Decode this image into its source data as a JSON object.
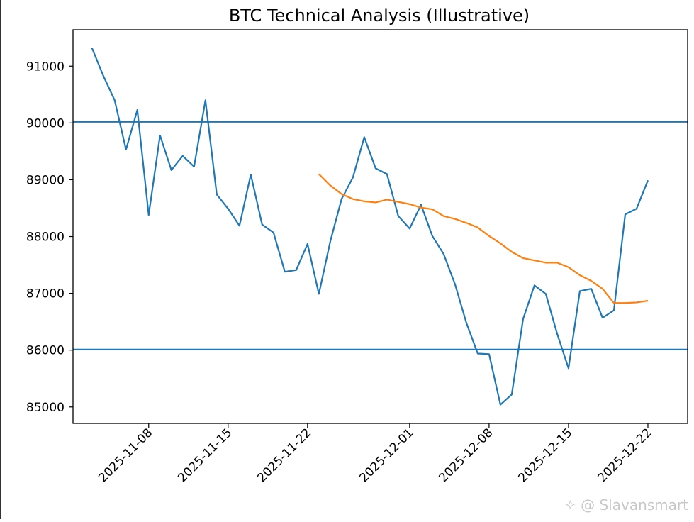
{
  "chart_data": {
    "type": "line",
    "title": "BTC Technical Analysis (Illustrative)",
    "xlabel": "",
    "ylabel": "",
    "x": [
      "2025-11-03",
      "2025-11-04",
      "2025-11-05",
      "2025-11-06",
      "2025-11-07",
      "2025-11-08",
      "2025-11-09",
      "2025-11-10",
      "2025-11-11",
      "2025-11-12",
      "2025-11-13",
      "2025-11-14",
      "2025-11-15",
      "2025-11-16",
      "2025-11-17",
      "2025-11-18",
      "2025-11-19",
      "2025-11-20",
      "2025-11-21",
      "2025-11-22",
      "2025-11-23",
      "2025-11-24",
      "2025-11-25",
      "2025-11-26",
      "2025-11-27",
      "2025-11-28",
      "2025-11-29",
      "2025-11-30",
      "2025-12-01",
      "2025-12-02",
      "2025-12-03",
      "2025-12-04",
      "2025-12-05",
      "2025-12-06",
      "2025-12-07",
      "2025-12-08",
      "2025-12-09",
      "2025-12-10",
      "2025-12-11",
      "2025-12-12",
      "2025-12-13",
      "2025-12-14",
      "2025-12-15",
      "2025-12-16",
      "2025-12-17",
      "2025-12-18",
      "2025-12-19",
      "2025-12-20",
      "2025-12-21",
      "2025-12-22"
    ],
    "series": [
      {
        "color": "#1f77b4",
        "values": [
          91320,
          90830,
          90400,
          89530,
          90230,
          88380,
          89780,
          89170,
          89420,
          89230,
          90400,
          88740,
          88490,
          88190,
          89090,
          88210,
          88070,
          87380,
          87410,
          87870,
          86990,
          87910,
          88660,
          89040,
          89750,
          89200,
          89100,
          88360,
          88140,
          88560,
          88010,
          87690,
          87160,
          86480,
          85940,
          85930,
          85040,
          85220,
          86550,
          87140,
          86990,
          86290,
          85680,
          87040,
          87080,
          86570,
          86700,
          88390,
          88490,
          88990
        ]
      },
      {
        "color": "#ff7f0e",
        "values": [
          null,
          null,
          null,
          null,
          null,
          null,
          null,
          null,
          null,
          null,
          null,
          null,
          null,
          null,
          null,
          null,
          null,
          null,
          null,
          null,
          89100,
          88900,
          88750,
          88660,
          88620,
          88600,
          88650,
          88610,
          88570,
          88510,
          88480,
          88360,
          88310,
          88240,
          88160,
          88010,
          87880,
          87730,
          87620,
          87580,
          87540,
          87540,
          87460,
          87320,
          87220,
          87080,
          86830,
          86830,
          86840,
          86870
        ]
      }
    ],
    "hlines": [
      {
        "value": 90020,
        "color": "#1f77b4"
      },
      {
        "value": 86010,
        "color": "#1f77b4"
      }
    ],
    "xticks": [
      "2025-11-08",
      "2025-11-15",
      "2025-11-22",
      "2025-12-01",
      "2025-12-08",
      "2025-12-15",
      "2025-12-22"
    ],
    "yticks": [
      85000,
      86000,
      87000,
      88000,
      89000,
      90000,
      91000
    ],
    "ylim": [
      84710,
      91640
    ],
    "xlim": [
      "2025-11-01.33",
      "2025-12-25.5"
    ],
    "grid": false
  },
  "watermark": "✧ @ Slavansmart"
}
